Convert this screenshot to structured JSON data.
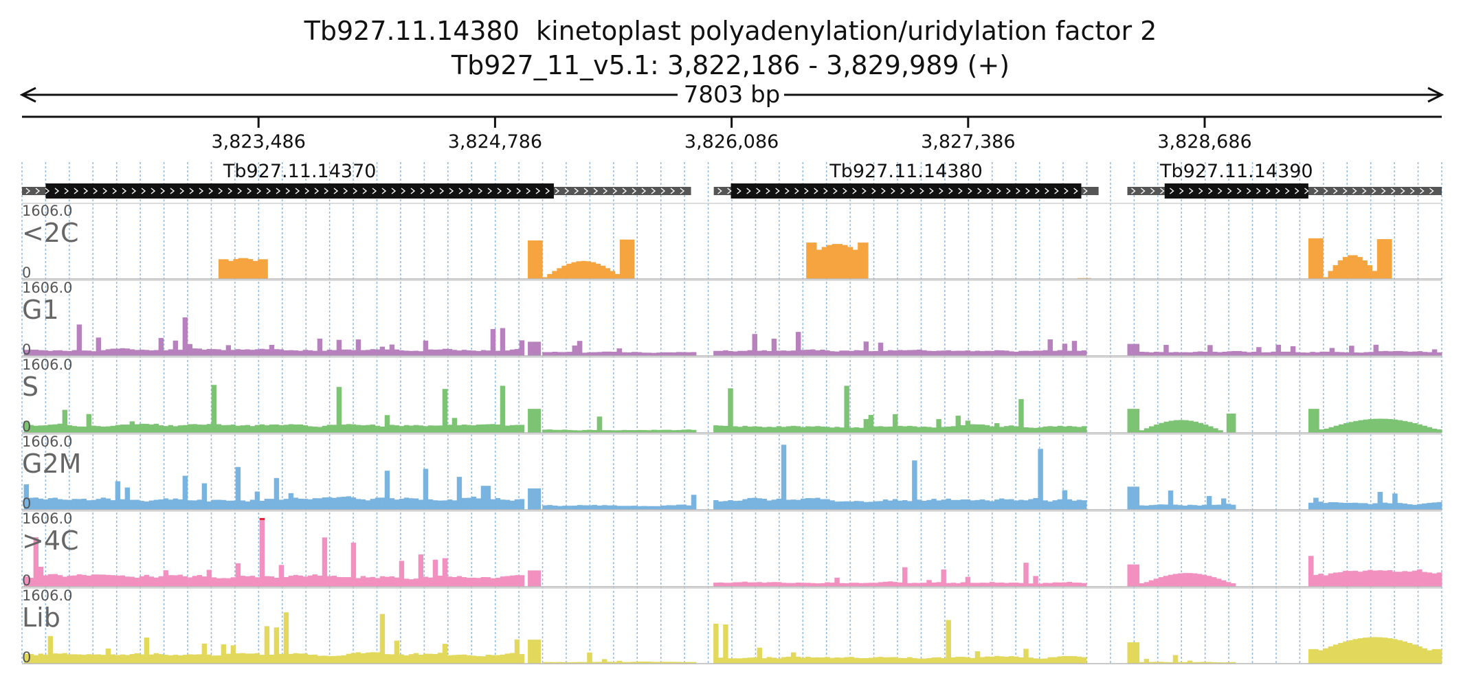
{
  "header": {
    "title_line1": "Tb927.11.14380  kinetoplast polyadenylation/uridylation factor 2",
    "title_line2": "Tb927_11_v5.1: 3,822,186 - 3,829,989 (+)"
  },
  "chart_data": {
    "type": "area",
    "title": "Tb927.11.14380  kinetoplast polyadenylation/uridylation factor 2",
    "subtitle": "Tb927_11_v5.1: 3,822,186 - 3,829,989 (+)",
    "region": {
      "chromosome": "Tb927_11_v5.1",
      "start": 3822186,
      "end": 3829989,
      "strand": "+",
      "span_label": "7803 bp"
    },
    "xlim": [
      3822186,
      3829989
    ],
    "ylim": [
      0,
      1606.0
    ],
    "x_ticks": [
      3823486,
      3824786,
      3826086,
      3827386,
      3828686
    ],
    "x_tick_labels": [
      "3,823,486",
      "3,824,786",
      "3,826,086",
      "3,827,386",
      "3,828,686"
    ],
    "grid": true,
    "genes": [
      {
        "name": "Tb927.11.14370",
        "utr_start": 3822186,
        "cds_start": 3822316,
        "cds_end": 3825109,
        "utr_end": 3825863
      },
      {
        "name": "Tb927.11.14380",
        "utr_start": 3825988,
        "cds_start": 3826082,
        "cds_end": 3828008,
        "utr_end": 3828103
      },
      {
        "name": "Tb927.11.14390",
        "utr_start": 3828261,
        "cds_start": 3828466,
        "cds_end": 3829256,
        "utr_end": 3829989
      }
    ],
    "tracks": [
      {
        "name": "<2C",
        "color": "#f5a43f",
        "ymax_label": "1606.0",
        "ymin_label": "0",
        "segments": [
          {
            "start": 3823266,
            "end": 3823536,
            "shape": "dome",
            "edge": 460,
            "peak": 490
          },
          {
            "start": 3824966,
            "end": 3825551,
            "shape": "cup",
            "edge": 900,
            "peak": 420,
            "right_edge": 920
          },
          {
            "start": 3826496,
            "end": 3826836,
            "shape": "dome",
            "edge": 850,
            "peak": 820
          },
          {
            "start": 3827986,
            "end": 3828061,
            "shape": "flat",
            "edge": 20,
            "peak": 20
          },
          {
            "start": 3829256,
            "end": 3829714,
            "shape": "cup",
            "edge": 950,
            "peak": 560,
            "right_edge": 930
          }
        ]
      },
      {
        "name": "G1",
        "color": "#b681bd",
        "ymax_label": "1606.0",
        "ymin_label": "0",
        "segments": [
          {
            "start": 3822196,
            "end": 3824946,
            "shape": "noise",
            "base": 150,
            "peak": 900
          },
          {
            "start": 3824966,
            "end": 3825036,
            "shape": "flat",
            "edge": 330,
            "peak": 330
          },
          {
            "start": 3825046,
            "end": 3825891,
            "shape": "noise",
            "base": 90,
            "peak": 350
          },
          {
            "start": 3825986,
            "end": 3828036,
            "shape": "noise",
            "base": 130,
            "peak": 560
          },
          {
            "start": 3828261,
            "end": 3828326,
            "shape": "flat",
            "edge": 280,
            "peak": 280
          },
          {
            "start": 3828326,
            "end": 3829989,
            "shape": "noise",
            "base": 100,
            "peak": 260
          }
        ]
      },
      {
        "name": "S",
        "color": "#7cc473",
        "ymax_label": "1606.0",
        "ymin_label": "0",
        "segments": [
          {
            "start": 3822196,
            "end": 3824946,
            "shape": "noise",
            "base": 180,
            "peak": 1120
          },
          {
            "start": 3824966,
            "end": 3825036,
            "shape": "flat",
            "edge": 560,
            "peak": 560
          },
          {
            "start": 3825046,
            "end": 3825891,
            "shape": "noise",
            "base": 70,
            "peak": 380
          },
          {
            "start": 3825986,
            "end": 3828036,
            "shape": "noise",
            "base": 160,
            "peak": 1100
          },
          {
            "start": 3828261,
            "end": 3828326,
            "shape": "flat",
            "edge": 560,
            "peak": 560
          },
          {
            "start": 3828326,
            "end": 3828786,
            "shape": "dome",
            "edge": 60,
            "peak": 300
          },
          {
            "start": 3828806,
            "end": 3828856,
            "shape": "flat",
            "edge": 450,
            "peak": 450
          },
          {
            "start": 3829256,
            "end": 3829314,
            "shape": "flat",
            "edge": 560,
            "peak": 560
          },
          {
            "start": 3829314,
            "end": 3829989,
            "shape": "dome",
            "edge": 80,
            "peak": 330
          }
        ]
      },
      {
        "name": "G2M",
        "color": "#79b3df",
        "ymax_label": "1606.0",
        "ymin_label": "0",
        "segments": [
          {
            "start": 3822196,
            "end": 3824946,
            "shape": "noise",
            "base": 260,
            "peak": 1000
          },
          {
            "start": 3824966,
            "end": 3825036,
            "shape": "flat",
            "edge": 500,
            "peak": 500
          },
          {
            "start": 3825046,
            "end": 3825891,
            "shape": "noise",
            "base": 110,
            "peak": 350
          },
          {
            "start": 3825986,
            "end": 3828036,
            "shape": "noise",
            "base": 240,
            "peak": 1520
          },
          {
            "start": 3828261,
            "end": 3828326,
            "shape": "flat",
            "edge": 540,
            "peak": 540
          },
          {
            "start": 3828326,
            "end": 3828856,
            "shape": "noise",
            "base": 120,
            "peak": 450
          },
          {
            "start": 3829256,
            "end": 3829989,
            "shape": "noise",
            "base": 160,
            "peak": 380
          }
        ]
      },
      {
        "name": ">4C",
        "color": "#f291bf",
        "ymax_label": "1606.0",
        "ymin_label": "0",
        "segments": [
          {
            "start": 3822196,
            "end": 3824946,
            "shape": "noise",
            "base": 260,
            "peak": 1606
          },
          {
            "start": 3824966,
            "end": 3825036,
            "shape": "flat",
            "edge": 380,
            "peak": 380
          },
          {
            "start": 3825986,
            "end": 3828036,
            "shape": "noise",
            "base": 110,
            "peak": 560
          },
          {
            "start": 3828261,
            "end": 3828326,
            "shape": "flat",
            "edge": 520,
            "peak": 520
          },
          {
            "start": 3828326,
            "end": 3828856,
            "shape": "dome",
            "edge": 80,
            "peak": 320
          },
          {
            "start": 3829256,
            "end": 3829989,
            "shape": "noise",
            "base": 340,
            "peak": 720
          }
        ]
      },
      {
        "name": "Lib",
        "color": "#e2d85b",
        "ymax_label": "1606.0",
        "ymin_label": "0",
        "segments": [
          {
            "start": 3822196,
            "end": 3824946,
            "shape": "noise",
            "base": 230,
            "peak": 1200
          },
          {
            "start": 3824966,
            "end": 3825036,
            "shape": "flat",
            "edge": 560,
            "peak": 560
          },
          {
            "start": 3825046,
            "end": 3825891,
            "shape": "noise",
            "base": 40,
            "peak": 260
          },
          {
            "start": 3825986,
            "end": 3828036,
            "shape": "noise",
            "base": 160,
            "peak": 1020
          },
          {
            "start": 3828261,
            "end": 3828326,
            "shape": "flat",
            "edge": 500,
            "peak": 500
          },
          {
            "start": 3828326,
            "end": 3828856,
            "shape": "noise",
            "base": 40,
            "peak": 200
          },
          {
            "start": 3829256,
            "end": 3829989,
            "shape": "dome",
            "edge": 340,
            "peak": 620
          }
        ]
      }
    ]
  }
}
